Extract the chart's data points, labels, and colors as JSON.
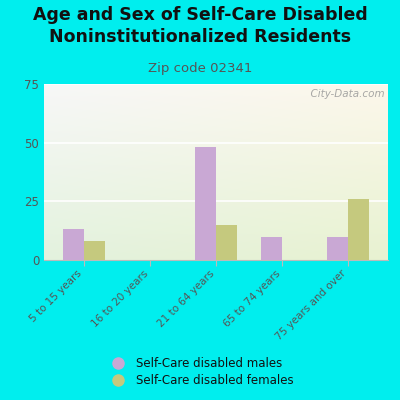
{
  "title": "Age and Sex of Self-Care Disabled\nNoninstitutionalized Residents",
  "subtitle": "Zip code 02341",
  "categories": [
    "5 to 15 years",
    "16 to 20 years",
    "21 to 64 years",
    "65 to 74 years",
    "75 years and over"
  ],
  "males": [
    13,
    0,
    48,
    10,
    10
  ],
  "females": [
    8,
    0,
    15,
    0,
    26
  ],
  "male_color": "#c9a8d4",
  "female_color": "#c5c97e",
  "ylim": [
    0,
    75
  ],
  "yticks": [
    0,
    25,
    50,
    75
  ],
  "outer_bg": "#00eeee",
  "watermark": "  City-Data.com",
  "legend_male": "Self-Care disabled males",
  "legend_female": "Self-Care disabled females",
  "title_fontsize": 12.5,
  "subtitle_fontsize": 9.5,
  "title_color": "#111111",
  "subtitle_color": "#555555"
}
